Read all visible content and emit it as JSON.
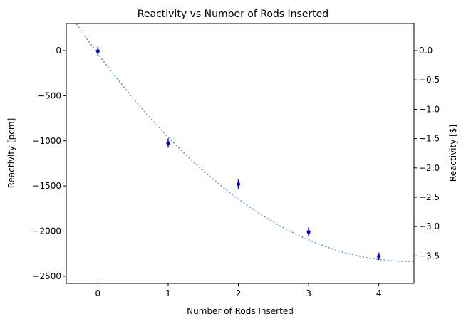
{
  "chart_data": {
    "type": "scatter",
    "title": "Reactivity vs Number of Rods Inserted",
    "xlabel": "Number of Rods Inserted",
    "ylabel": "Reactivity [pcm]",
    "ylabel_right": "Reactivity [$]",
    "xlim": [
      -0.45,
      4.5
    ],
    "ylim": [
      -2580,
      300
    ],
    "ylim_right": [
      -3.969,
      0.4615
    ],
    "x_ticks": [
      0,
      1,
      2,
      3,
      4
    ],
    "y_ticks": [
      0,
      -500,
      -1000,
      -1500,
      -2000,
      -2500
    ],
    "y_right_ticks": [
      0.0,
      -0.5,
      -1.0,
      -1.5,
      -2.0,
      -2.5,
      -3.0,
      -3.5
    ],
    "grid": false,
    "series": [
      {
        "kind": "errorbar",
        "color": "#0000cd",
        "x": [
          0,
          1,
          2,
          3,
          4
        ],
        "y": [
          -5,
          -1025,
          -1480,
          -2010,
          -2280
        ],
        "yerr": [
          50,
          50,
          50,
          50,
          40
        ]
      },
      {
        "kind": "fit-line",
        "style": "dotted",
        "color": "#4a90e2",
        "fit": {
          "a": 117.5,
          "b": -1040,
          "c": -35
        },
        "x_range": [
          -0.45,
          4.5
        ]
      }
    ]
  }
}
